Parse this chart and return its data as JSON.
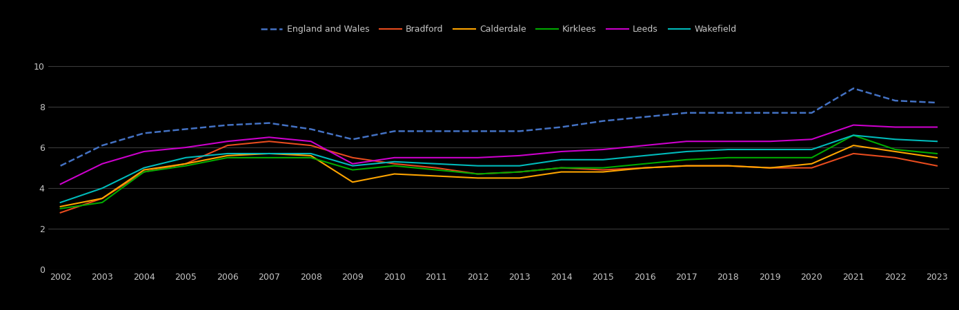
{
  "background_color": "#000000",
  "text_color": "#c8c8c8",
  "grid_color": "#3a3a3a",
  "years": [
    2002,
    2003,
    2004,
    2005,
    2006,
    2007,
    2008,
    2009,
    2010,
    2011,
    2012,
    2013,
    2014,
    2015,
    2016,
    2017,
    2018,
    2019,
    2020,
    2021,
    2022,
    2023
  ],
  "series": [
    {
      "name": "England and Wales",
      "values": [
        5.1,
        6.1,
        6.7,
        6.9,
        7.1,
        7.2,
        6.9,
        6.4,
        6.8,
        6.8,
        6.8,
        6.8,
        7.0,
        7.3,
        7.5,
        7.7,
        7.7,
        7.7,
        7.7,
        8.9,
        8.3,
        8.2
      ],
      "color": "#4472C4",
      "linestyle": "dashed",
      "linewidth": 1.8
    },
    {
      "name": "Bradford",
      "values": [
        2.8,
        3.5,
        4.8,
        5.2,
        6.1,
        6.3,
        6.1,
        5.5,
        5.2,
        5.0,
        4.7,
        4.8,
        5.0,
        4.9,
        5.0,
        5.1,
        5.1,
        5.0,
        5.0,
        5.7,
        5.5,
        5.1
      ],
      "color": "#E84C1E",
      "linestyle": "solid",
      "linewidth": 1.5
    },
    {
      "name": "Calderdale",
      "values": [
        3.1,
        3.5,
        4.9,
        5.2,
        5.6,
        5.7,
        5.6,
        4.3,
        4.7,
        4.6,
        4.5,
        4.5,
        4.8,
        4.8,
        5.0,
        5.1,
        5.1,
        5.0,
        5.2,
        6.1,
        5.8,
        5.5
      ],
      "color": "#FFA500",
      "linestyle": "solid",
      "linewidth": 1.5
    },
    {
      "name": "Kirklees",
      "values": [
        3.0,
        3.3,
        4.8,
        5.1,
        5.5,
        5.5,
        5.5,
        4.9,
        5.1,
        4.9,
        4.7,
        4.8,
        5.0,
        5.0,
        5.2,
        5.4,
        5.5,
        5.5,
        5.5,
        6.6,
        5.9,
        5.7
      ],
      "color": "#00AA00",
      "linestyle": "solid",
      "linewidth": 1.5
    },
    {
      "name": "Leeds",
      "values": [
        4.2,
        5.2,
        5.8,
        6.0,
        6.3,
        6.5,
        6.3,
        5.2,
        5.5,
        5.5,
        5.5,
        5.6,
        5.8,
        5.9,
        6.1,
        6.3,
        6.3,
        6.3,
        6.4,
        7.1,
        7.0,
        7.0
      ],
      "color": "#CC00CC",
      "linestyle": "solid",
      "linewidth": 1.5
    },
    {
      "name": "Wakefield",
      "values": [
        3.3,
        4.0,
        5.0,
        5.5,
        5.7,
        5.7,
        5.7,
        5.1,
        5.3,
        5.2,
        5.1,
        5.1,
        5.4,
        5.4,
        5.6,
        5.8,
        5.9,
        5.9,
        5.9,
        6.6,
        6.4,
        6.3
      ],
      "color": "#00BBBB",
      "linestyle": "solid",
      "linewidth": 1.5
    }
  ],
  "ylim": [
    0,
    10.5
  ],
  "yticks": [
    0,
    2,
    4,
    6,
    8,
    10
  ],
  "legend_fontsize": 9,
  "tick_fontsize": 9
}
